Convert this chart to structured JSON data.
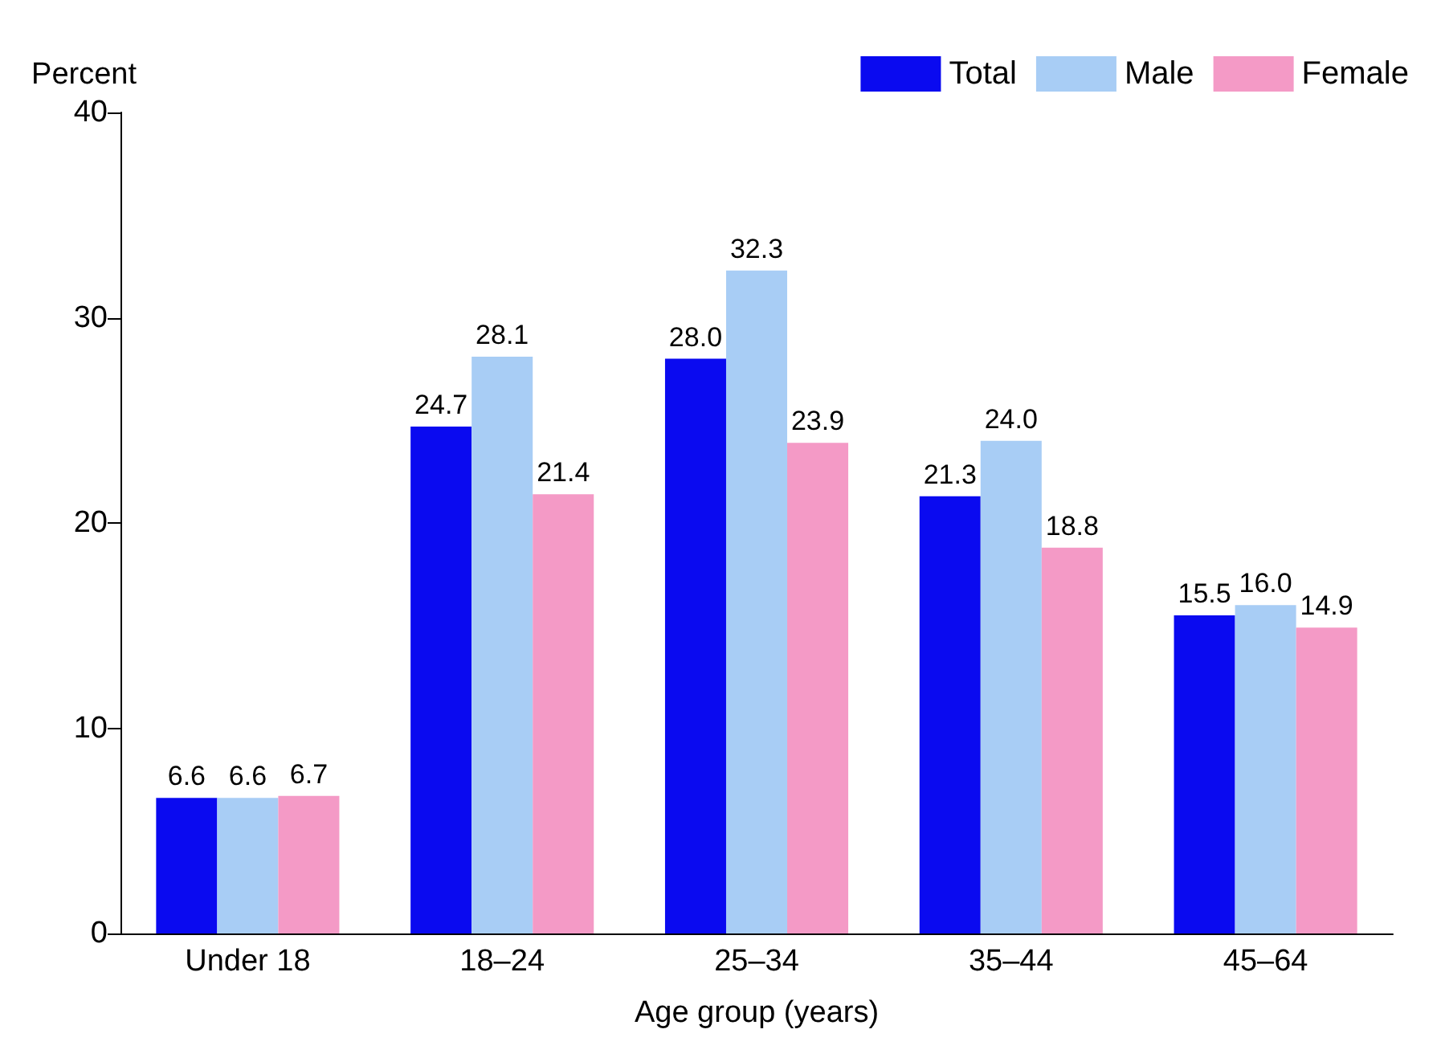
{
  "chart_data": {
    "type": "bar",
    "ylabel": "Percent",
    "xlabel": "Age group (years)",
    "categories": [
      "Under 18",
      "18–24",
      "25–34",
      "35–44",
      "45–64"
    ],
    "series": [
      {
        "name": "Total",
        "color": "#0a0af0",
        "values": [
          6.6,
          24.7,
          28,
          21.3,
          15.5
        ],
        "value_labels": [
          "6.6",
          "24.7",
          "28.0",
          "21.3",
          "15.5"
        ]
      },
      {
        "name": "Male",
        "color": "#a8cdf5",
        "values": [
          6.6,
          28.1,
          32.3,
          24,
          16
        ],
        "value_labels": [
          "6.6",
          "28.1",
          "32.3",
          "24.0",
          "16.0"
        ]
      },
      {
        "name": "Female",
        "color": "#f49ac6",
        "values": [
          6.7,
          21.4,
          23.9,
          18.8,
          14.9
        ],
        "value_labels": [
          "6.7",
          "21.4",
          "23.9",
          "18.8",
          "14.9"
        ]
      }
    ],
    "ylim": [
      0,
      40
    ],
    "yticks": [
      0,
      10,
      20,
      30,
      40
    ],
    "grid": false,
    "legend": "top right"
  }
}
